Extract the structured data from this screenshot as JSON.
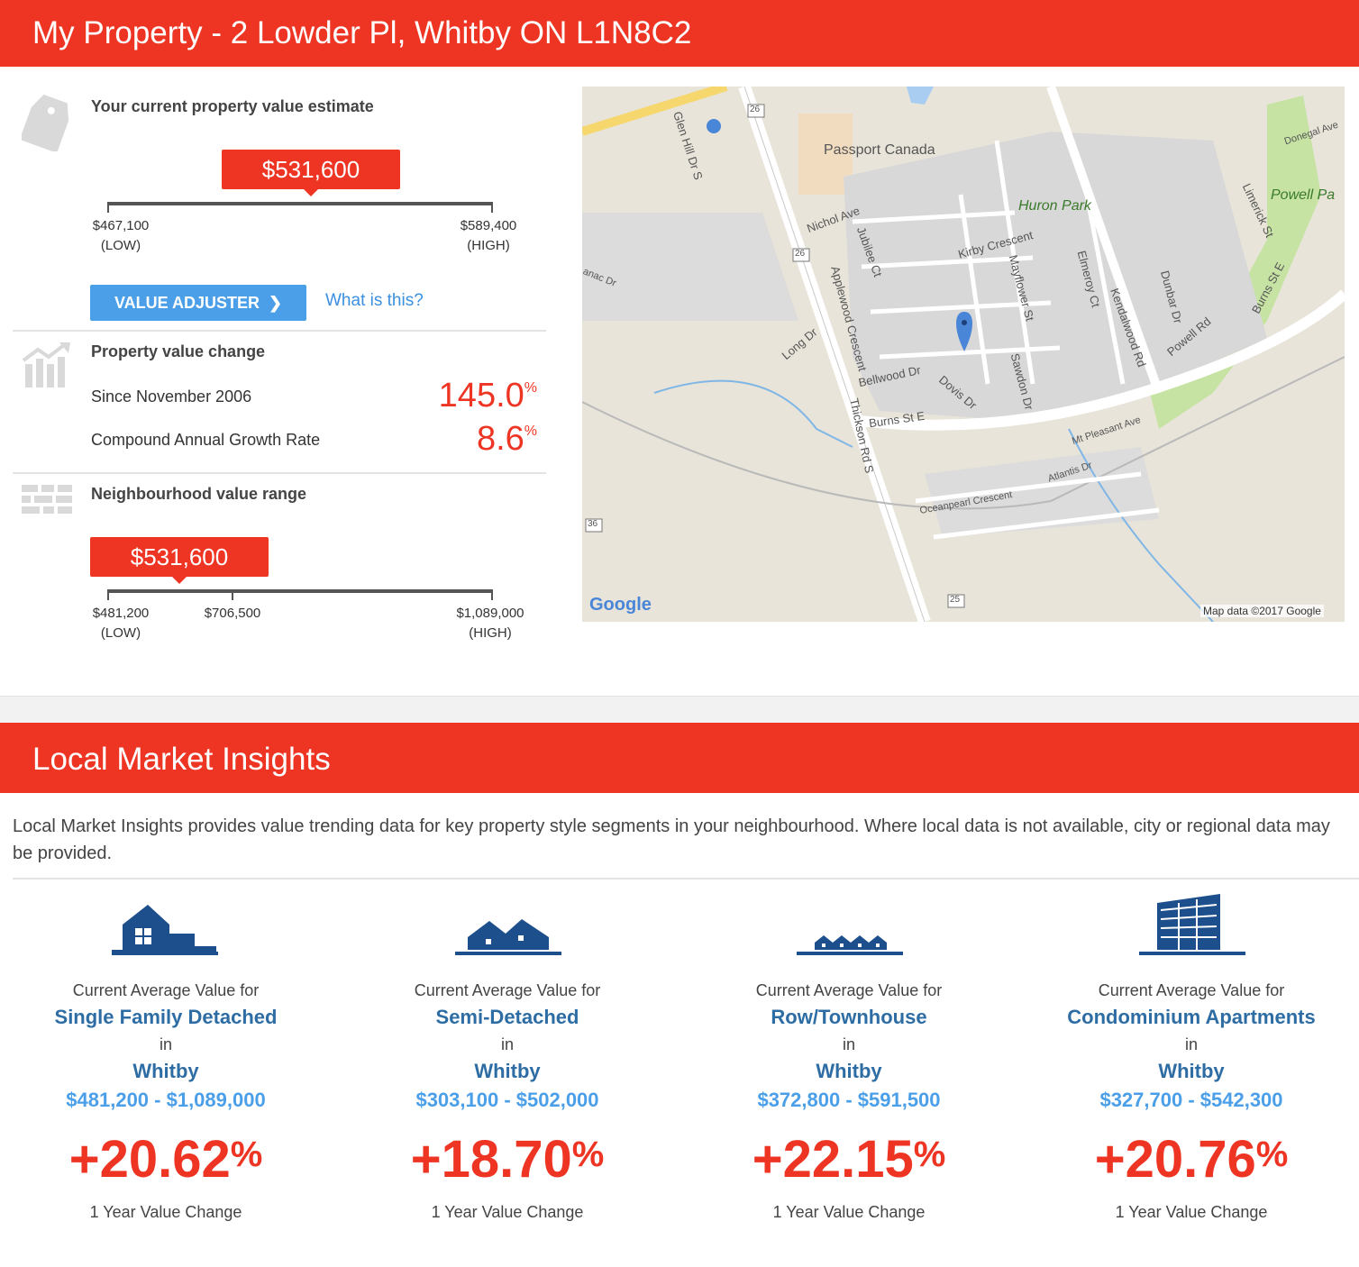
{
  "property_header": {
    "title": "My Property - 2 Lowder Pl, Whitby ON L1N8C2"
  },
  "estimate": {
    "title": "Your current property value estimate",
    "value": "$531,600",
    "low": "$467,100",
    "low_tag": "(LOW)",
    "high": "$589,400",
    "high_tag": "(HIGH)",
    "adjuster_label": "VALUE ADJUSTER",
    "what_is_this": "What is this?"
  },
  "change": {
    "title": "Property value change",
    "since_label": "Since November 2006",
    "since_value": "145.0",
    "cagr_label": "Compound Annual Growth Rate",
    "cagr_value": "8.6",
    "unit": "%"
  },
  "neighbourhood": {
    "title": "Neighbourhood value range",
    "value": "$531,600",
    "low": "$481,200",
    "low_tag": "(LOW)",
    "mid": "$706,500",
    "high": "$1,089,000",
    "high_tag": "(HIGH)"
  },
  "map": {
    "labels": {
      "passport": "Passport Canada",
      "huron": "Huron Park",
      "powell": "Powell Pa",
      "nichol": "Nichol Ave",
      "kirby": "Kirby Crescent",
      "jubilee": "Jubilee Ct",
      "applewood": "Applewood Crescent",
      "mayflower": "Mayflower St",
      "elmeroy": "Elmeroy Ct",
      "kendalwood": "Kendalwood Rd",
      "dunbar": "Dunbar Dr",
      "powellrd": "Powell Rd",
      "burns": "Burns St E",
      "burns2": "Burns St E",
      "bellwood": "Bellwood Dr",
      "dovis": "Dovis Dr",
      "sawdon": "Sawdon Dr",
      "thickson": "Thickson Rd S",
      "long": "Long Dr",
      "glenhill": "Glen Hill Dr S",
      "limerick": "Limerick St",
      "donegal": "Donegal Ave",
      "mtpleasant": "Mt Pleasant Ave",
      "atlantis": "Atlantis Dr",
      "oceanpearl": "Oceanpearl Crescent",
      "anac": "anac Dr",
      "r26a": "26",
      "r26b": "26",
      "r36": "36",
      "r25": "25",
      "google": "Google",
      "mapdata": "Map data ©2017 Google"
    }
  },
  "insights": {
    "title": "Local Market Insights",
    "intro": "Local Market Insights provides value trending data for key property style segments in your neighbourhood. Where local data is not available, city or regional data may be provided.",
    "cards": [
      {
        "line1": "Current Average Value for",
        "type": "Single Family Detached",
        "in": "in",
        "city": "Whitby",
        "range": "$481,200 - $1,089,000",
        "pct": "+20.62",
        "unit": "%",
        "label": "1 Year Value Change",
        "icon": "single-family-house-icon"
      },
      {
        "line1": "Current Average Value for",
        "type": "Semi-Detached",
        "in": "in",
        "city": "Whitby",
        "range": "$303,100 - $502,000",
        "pct": "+18.70",
        "unit": "%",
        "label": "1 Year Value Change",
        "icon": "semi-detached-house-icon"
      },
      {
        "line1": "Current Average Value for",
        "type": "Row/Townhouse",
        "in": "in",
        "city": "Whitby",
        "range": "$372,800 - $591,500",
        "pct": "+22.15",
        "unit": "%",
        "label": "1 Year Value Change",
        "icon": "townhouse-icon"
      },
      {
        "line1": "Current Average Value for",
        "type": "Condominium Apartments",
        "in": "in",
        "city": "Whitby",
        "range": "$327,700 - $542,300",
        "pct": "+20.76",
        "unit": "%",
        "label": "1 Year Value Change",
        "icon": "condo-building-icon"
      }
    ]
  },
  "colors": {
    "brand_red": "#ee3524",
    "accent_blue": "#4a9fe8",
    "title_blue": "#2e6da4"
  }
}
